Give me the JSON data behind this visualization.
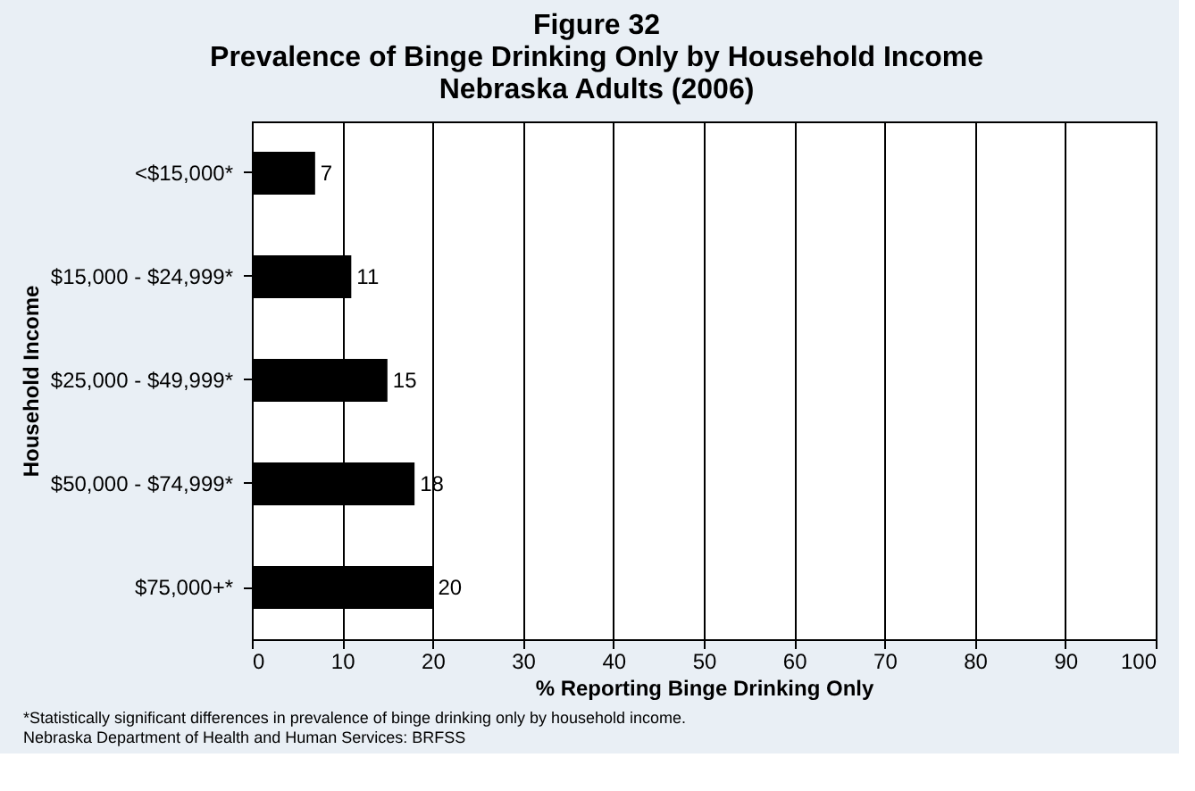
{
  "chart_data": {
    "type": "bar",
    "orientation": "horizontal",
    "title": "Figure 32\nPrevalence of Binge Drinking Only by Household Income\nNebraska Adults (2006)",
    "categories": [
      "<$15,000*",
      "$15,000 - $24,999*",
      "$25,000 - $49,999*",
      "$50,000 - $74,999*",
      "$75,000+*"
    ],
    "values": [
      7,
      11,
      15,
      18,
      20
    ],
    "color": "#000000",
    "xlim": [
      0,
      100
    ],
    "xticks": [
      0,
      10,
      20,
      30,
      40,
      50,
      60,
      70,
      80,
      90,
      100
    ],
    "xlabel": "% Reporting Binge Drinking Only",
    "ylabel": "Household Income",
    "grid": "x",
    "data_labels": true,
    "annotations": [
      "*Statistically significant differences in prevalence of binge drinking only by household income.",
      "Nebraska Department of Health and Human Services: BRFSS"
    ]
  }
}
